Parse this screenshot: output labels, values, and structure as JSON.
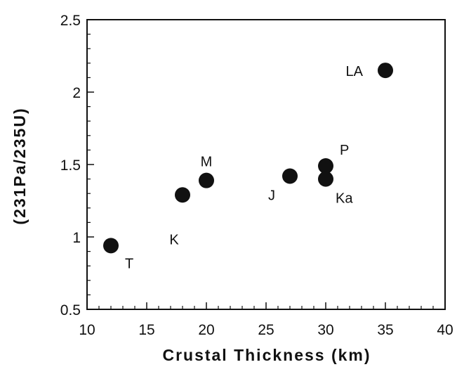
{
  "chart_data": {
    "type": "scatter",
    "title": "",
    "xlabel": "Crustal Thickness (km)",
    "ylabel": "(231Pa/235U)",
    "xlim": [
      10,
      40
    ],
    "ylim": [
      0.5,
      2.5
    ],
    "x_ticks": [
      "10",
      "15",
      "20",
      "25",
      "30",
      "35",
      "40"
    ],
    "y_ticks": [
      "0.5",
      "1",
      "1.5",
      "2",
      "2.5"
    ],
    "grid": false,
    "legend": "none",
    "marker_color": "#111111",
    "points": [
      {
        "label": "T",
        "x": 12,
        "y": 0.94
      },
      {
        "label": "K",
        "x": 18,
        "y": 1.29
      },
      {
        "label": "M",
        "x": 20,
        "y": 1.39
      },
      {
        "label": "J",
        "x": 27,
        "y": 1.42
      },
      {
        "label": "P",
        "x": 30,
        "y": 1.49
      },
      {
        "label": "Ka",
        "x": 30,
        "y": 1.4
      },
      {
        "label": "LA",
        "x": 35,
        "y": 2.15
      }
    ]
  }
}
